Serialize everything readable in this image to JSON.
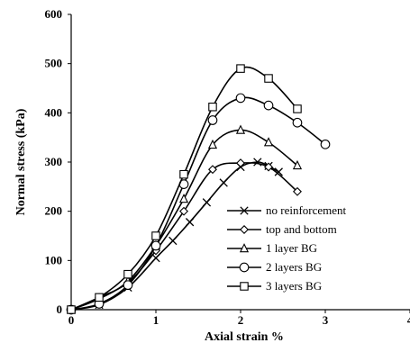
{
  "chart_data": {
    "type": "line",
    "xlabel": "Axial strain %",
    "ylabel": "Normal stress (kPa)",
    "xlim": [
      0,
      4
    ],
    "ylim": [
      0,
      600
    ],
    "xticks": [
      0,
      1,
      2,
      3,
      4
    ],
    "yticks": [
      0,
      100,
      200,
      300,
      400,
      500,
      600
    ],
    "grid": false,
    "legend_position": "bottom-right",
    "series": [
      {
        "name": "no reinforcement",
        "marker": "x",
        "x": [
          0,
          0.33,
          0.67,
          1.0,
          1.2,
          1.4,
          1.6,
          1.8,
          2.0,
          2.2,
          2.33,
          2.45
        ],
        "y": [
          0,
          10,
          45,
          105,
          140,
          178,
          218,
          258,
          290,
          300,
          292,
          280
        ]
      },
      {
        "name": "top and bottom",
        "marker": "diamond",
        "x": [
          0,
          0.33,
          0.67,
          1.0,
          1.33,
          1.67,
          2.0,
          2.33,
          2.67
        ],
        "y": [
          0,
          25,
          55,
          120,
          200,
          285,
          298,
          290,
          240
        ]
      },
      {
        "name": "1 layer BG",
        "marker": "triangle",
        "x": [
          0,
          0.33,
          0.67,
          1.0,
          1.33,
          1.67,
          2.0,
          2.33,
          2.67
        ],
        "y": [
          0,
          22,
          58,
          130,
          225,
          335,
          365,
          340,
          293
        ]
      },
      {
        "name": "2 layers BG",
        "marker": "circle",
        "x": [
          0,
          0.33,
          0.67,
          1.0,
          1.33,
          1.67,
          2.0,
          2.33,
          2.67,
          3.0
        ],
        "y": [
          0,
          12,
          50,
          130,
          255,
          385,
          430,
          415,
          380,
          336
        ]
      },
      {
        "name": "3 layers BG",
        "marker": "square",
        "x": [
          0,
          0.33,
          0.67,
          1.0,
          1.33,
          1.67,
          2.0,
          2.33,
          2.67
        ],
        "y": [
          0,
          25,
          72,
          150,
          275,
          412,
          490,
          470,
          408
        ]
      }
    ]
  }
}
